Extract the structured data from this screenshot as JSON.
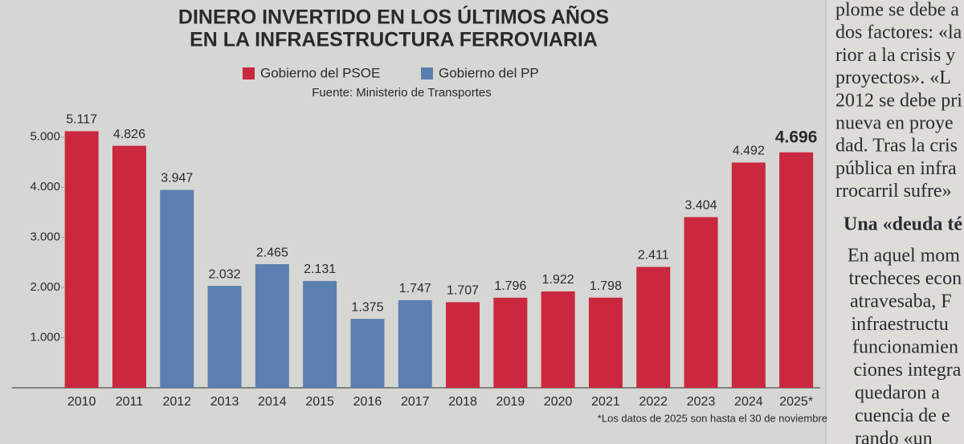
{
  "chart_data": {
    "type": "bar",
    "title": [
      "DINERO INVERTIDO EN LOS ÚLTIMOS AÑOS",
      "EN LA INFRAESTRUCTURA FERROVIARIA"
    ],
    "source": "Fuente: Ministerio de Transportes",
    "footnote": "*Los datos de 2025 son hasta el 30 de noviembre",
    "categories": [
      "2010",
      "2011",
      "2012",
      "2013",
      "2014",
      "2015",
      "2016",
      "2017",
      "2018",
      "2019",
      "2020",
      "2021",
      "2022",
      "2023",
      "2024",
      "2025*"
    ],
    "series": [
      {
        "name": "Gobierno del PSOE",
        "color": "#c9283e",
        "values": [
          5117,
          4826,
          null,
          null,
          null,
          null,
          null,
          null,
          1707,
          1796,
          1922,
          1798,
          2411,
          3404,
          4492,
          4696
        ],
        "value_labels": [
          "5.117",
          "4.826",
          null,
          null,
          null,
          null,
          null,
          null,
          "1.707",
          "1.796",
          "1.922",
          "1.798",
          "2.411",
          "3.404",
          "4.492",
          "4.696"
        ]
      },
      {
        "name": "Gobierno del PP",
        "color": "#5a80af",
        "values": [
          null,
          null,
          3947,
          2032,
          2465,
          2131,
          1375,
          1747,
          null,
          null,
          null,
          null,
          null,
          null,
          null,
          null
        ],
        "value_labels": [
          null,
          null,
          "3.947",
          "2.032",
          "2.465",
          "2.131",
          "1.375",
          "1.747",
          null,
          null,
          null,
          null,
          null,
          null,
          null,
          null
        ]
      }
    ],
    "ylim": [
      0,
      5300
    ],
    "yticks": [
      {
        "value": 1000,
        "label": "1.000"
      },
      {
        "value": 2000,
        "label": "2.000"
      },
      {
        "value": 3000,
        "label": "3.000"
      },
      {
        "value": 4000,
        "label": "4.000"
      },
      {
        "value": 5000,
        "label": "5.000"
      }
    ],
    "grid": false
  },
  "column": {
    "lines_top": [
      "plome se debe a",
      "dos factores: «la",
      "rior a la crisis y",
      "proyectos». «L",
      "2012 se debe pri",
      "nueva en proye",
      "dad. Tras la cris",
      "pública en infra",
      "rrocarril sufre»"
    ],
    "heading": "Una «deuda té",
    "lines_bottom": [
      "En aquel mom",
      "trecheces econ",
      "atravesaba, F",
      "infraestructu",
      "funcionamien",
      "ciones integra",
      "quedaron a",
      "cuencia de e",
      "rando «un"
    ]
  }
}
